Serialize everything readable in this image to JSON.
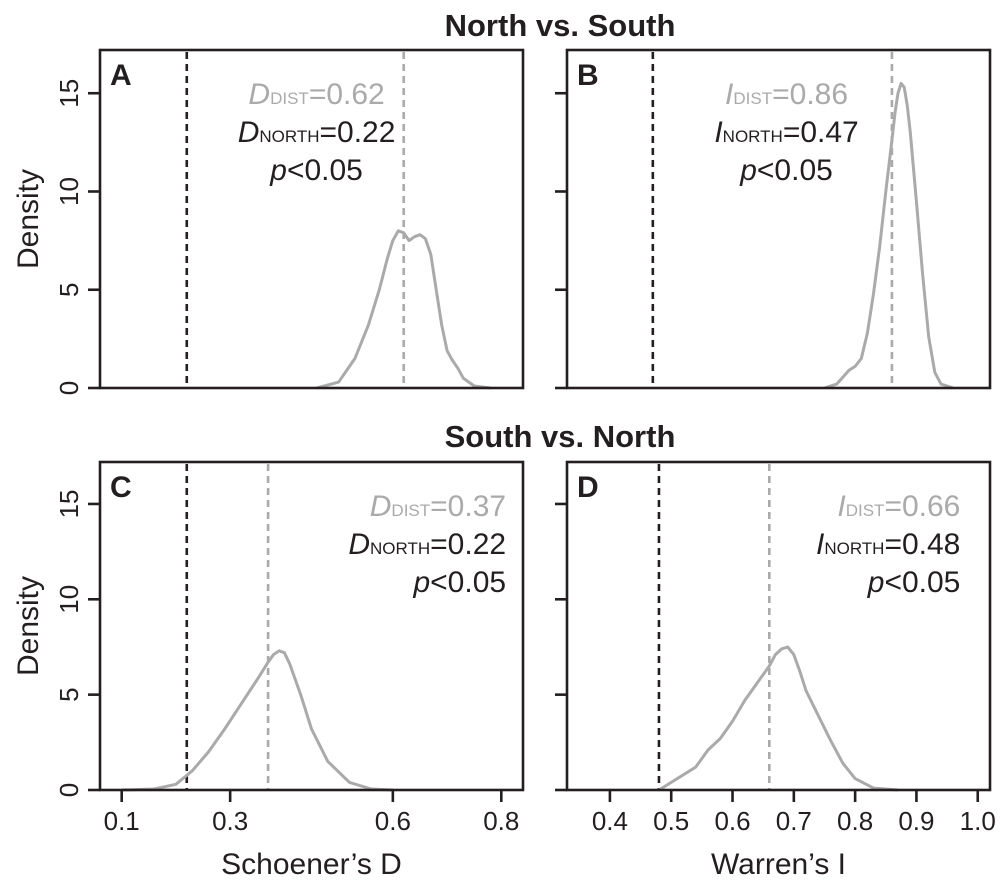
{
  "figure": {
    "row_titles": [
      "North vs. South",
      "South vs. North"
    ],
    "y_label": "Density"
  },
  "chart_data": [
    {
      "type": "line",
      "panel": "A",
      "row": 0,
      "col": 0,
      "xlabel": "",
      "ylabel": "Density",
      "xlim": [
        0.06,
        0.84
      ],
      "ylim": [
        0,
        17.2
      ],
      "yticks": [
        0,
        5,
        10,
        15
      ],
      "xticks": [],
      "show_y_tick_labels": true,
      "observed": 0.22,
      "null_mean": 0.62,
      "density": {
        "x": [
          0.46,
          0.5,
          0.53,
          0.555,
          0.575,
          0.59,
          0.6,
          0.61,
          0.62,
          0.63,
          0.64,
          0.65,
          0.66,
          0.67,
          0.68,
          0.69,
          0.7,
          0.71,
          0.72,
          0.73,
          0.75,
          0.78
        ],
        "y": [
          0,
          0.3,
          1.5,
          3.2,
          5.0,
          6.6,
          7.5,
          8.0,
          7.9,
          7.5,
          7.7,
          7.8,
          7.6,
          6.8,
          5.0,
          3.2,
          1.9,
          1.4,
          1.0,
          0.5,
          0.1,
          0
        ]
      },
      "annotation": [
        {
          "sym": "D",
          "sub": "DIST",
          "text": "=0.62",
          "color": "#aaaaaa"
        },
        {
          "sym": "D",
          "sub": "NORTH",
          "text": "=0.22",
          "color": "#231f20"
        },
        {
          "sym": "p",
          "sub": "",
          "text": "<0.05",
          "color": "#231f20"
        }
      ],
      "annotation_anchor": "center",
      "annotation_x": 0.512
    },
    {
      "type": "line",
      "panel": "B",
      "row": 0,
      "col": 1,
      "xlabel": "",
      "ylabel": "",
      "xlim": [
        0.33,
        1.02
      ],
      "ylim": [
        0,
        17.2
      ],
      "yticks": [
        0,
        5,
        10,
        15
      ],
      "xticks": [],
      "show_y_tick_labels": false,
      "observed": 0.47,
      "null_mean": 0.86,
      "density": {
        "x": [
          0.75,
          0.77,
          0.79,
          0.8,
          0.81,
          0.82,
          0.83,
          0.84,
          0.85,
          0.86,
          0.865,
          0.87,
          0.875,
          0.88,
          0.885,
          0.89,
          0.9,
          0.91,
          0.92,
          0.93,
          0.94,
          0.96
        ],
        "y": [
          0,
          0.2,
          0.9,
          1.1,
          1.5,
          2.8,
          4.8,
          7.2,
          10.0,
          12.6,
          14.0,
          15.0,
          15.5,
          15.3,
          14.4,
          13.0,
          9.5,
          5.8,
          2.6,
          0.8,
          0.2,
          0
        ]
      },
      "annotation": [
        {
          "sym": "I",
          "sub": "DIST",
          "text": "=0.86",
          "color": "#aaaaaa"
        },
        {
          "sym": "I",
          "sub": "NORTH",
          "text": "=0.47",
          "color": "#231f20"
        },
        {
          "sym": "p",
          "sub": "",
          "text": "<0.05",
          "color": "#231f20"
        }
      ],
      "annotation_anchor": "center",
      "annotation_x": 0.519
    },
    {
      "type": "line",
      "panel": "C",
      "row": 1,
      "col": 0,
      "xlabel": "Schoener’s D",
      "ylabel": "Density",
      "xlim": [
        0.06,
        0.84
      ],
      "ylim": [
        0,
        17.2
      ],
      "yticks": [
        0,
        5,
        10,
        15
      ],
      "xticks": [
        0.1,
        0.3,
        0.6,
        0.8
      ],
      "show_y_tick_labels": true,
      "observed": 0.22,
      "null_mean": 0.37,
      "density": {
        "x": [
          0.1,
          0.16,
          0.2,
          0.23,
          0.26,
          0.29,
          0.32,
          0.35,
          0.37,
          0.38,
          0.39,
          0.4,
          0.41,
          0.43,
          0.45,
          0.48,
          0.52,
          0.56,
          0.6
        ],
        "y": [
          0,
          0.05,
          0.3,
          1.0,
          2.0,
          3.2,
          4.5,
          5.8,
          6.7,
          7.1,
          7.3,
          7.2,
          6.6,
          5.0,
          3.2,
          1.5,
          0.4,
          0.05,
          0
        ]
      },
      "annotation": [
        {
          "sym": "D",
          "sub": "DIST",
          "text": "=0.37",
          "color": "#aaaaaa"
        },
        {
          "sym": "D",
          "sub": "NORTH",
          "text": "=0.22",
          "color": "#231f20"
        },
        {
          "sym": "p",
          "sub": "",
          "text": "<0.05",
          "color": "#231f20"
        }
      ],
      "annotation_anchor": "right",
      "annotation_x": 0.96
    },
    {
      "type": "line",
      "panel": "D",
      "row": 1,
      "col": 1,
      "xlabel": "Warren’s I",
      "ylabel": "",
      "xlim": [
        0.33,
        1.02
      ],
      "ylim": [
        0,
        17.2
      ],
      "yticks": [
        0,
        5,
        10,
        15
      ],
      "xticks": [
        0.4,
        0.5,
        0.6,
        0.7,
        0.8,
        0.9,
        1.0
      ],
      "xticklabels": [
        "0.4",
        "0.5",
        "0.6",
        "0.7",
        "0.8",
        "0.9",
        "1.0"
      ],
      "show_y_tick_labels": false,
      "observed": 0.48,
      "null_mean": 0.66,
      "density": {
        "x": [
          0.48,
          0.5,
          0.52,
          0.54,
          0.56,
          0.58,
          0.6,
          0.62,
          0.64,
          0.66,
          0.67,
          0.68,
          0.69,
          0.7,
          0.71,
          0.72,
          0.74,
          0.76,
          0.78,
          0.8,
          0.83,
          0.87
        ],
        "y": [
          0,
          0.4,
          0.8,
          1.2,
          2.1,
          2.7,
          3.6,
          4.7,
          5.6,
          6.5,
          7.1,
          7.4,
          7.5,
          7.1,
          6.2,
          5.2,
          3.9,
          2.6,
          1.4,
          0.6,
          0.1,
          0
        ]
      },
      "annotation": [
        {
          "sym": "I",
          "sub": "DIST",
          "text": "=0.66",
          "color": "#aaaaaa"
        },
        {
          "sym": "I",
          "sub": "NORTH",
          "text": "=0.48",
          "color": "#231f20"
        },
        {
          "sym": "p",
          "sub": "",
          "text": "<0.05",
          "color": "#231f20"
        }
      ],
      "annotation_anchor": "right",
      "annotation_x": 0.93
    }
  ],
  "colors": {
    "density_line": "#aaaaaa",
    "null_mean_line": "#aaaaaa",
    "observed_line": "#231f20",
    "axis": "#231f20"
  }
}
